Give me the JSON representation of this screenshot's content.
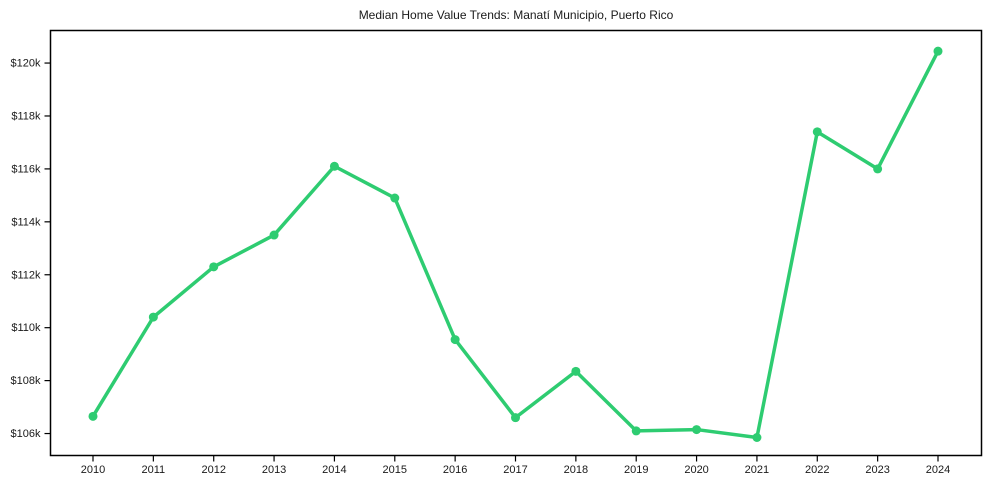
{
  "page": {
    "background": "#ffffff"
  },
  "chart_data": {
    "type": "line",
    "title": "Median Home Value Trends: Manatí Municipio, Puerto Rico",
    "xlabel": "",
    "ylabel": "",
    "categories": [
      "2010",
      "2011",
      "2012",
      "2013",
      "2014",
      "2015",
      "2016",
      "2017",
      "2018",
      "2019",
      "2020",
      "2021",
      "2022",
      "2023",
      "2024"
    ],
    "series": [
      {
        "name": "Median Home Value",
        "values": [
          106650,
          110400,
          112300,
          113500,
          116100,
          114900,
          109550,
          106600,
          108350,
          106100,
          106150,
          105850,
          117400,
          116000,
          120450
        ]
      }
    ],
    "ylim": [
      105170,
      121230
    ],
    "yticks": {
      "values": [
        106000,
        108000,
        110000,
        112000,
        114000,
        116000,
        118000,
        120000
      ],
      "labels": [
        "$106k",
        "$108k",
        "$110k",
        "$112k",
        "$114k",
        "$116k",
        "$118k",
        "$120k"
      ]
    },
    "grid": false,
    "legend": "none",
    "line_color": "#2ecc71",
    "axis_color": "#000000",
    "text_color": "#1a1a1a",
    "marker": "circle"
  }
}
